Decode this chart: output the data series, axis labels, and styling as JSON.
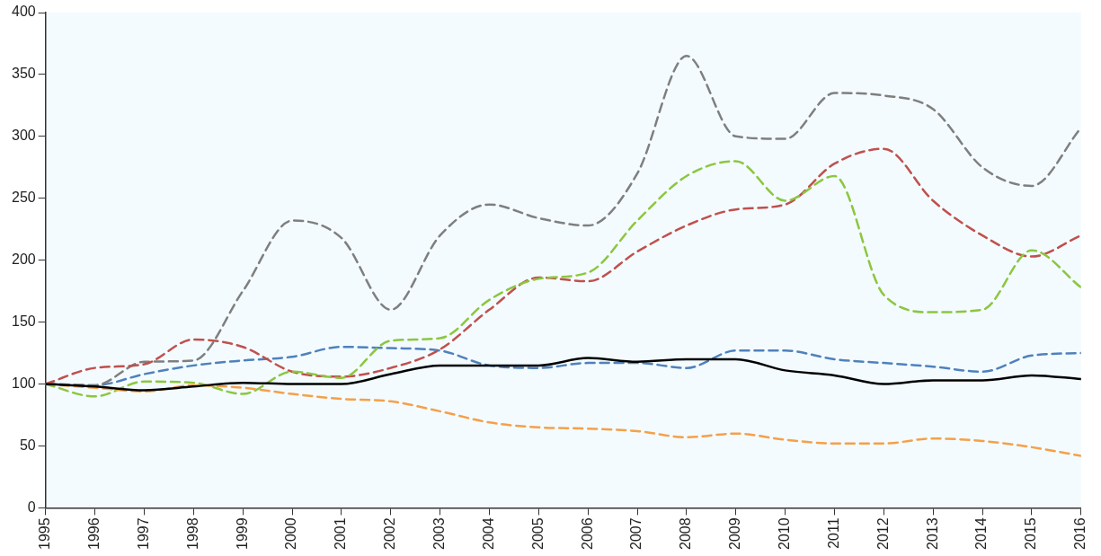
{
  "chart_data": {
    "type": "line",
    "x": [
      1995,
      1996,
      1997,
      1998,
      1999,
      2000,
      2001,
      2002,
      2003,
      2004,
      2005,
      2006,
      2007,
      2008,
      2009,
      2010,
      2011,
      2012,
      2013,
      2014,
      2015,
      2016
    ],
    "xlim": [
      1995,
      2016
    ],
    "xticks": [
      1995,
      1996,
      1997,
      1998,
      1999,
      2000,
      2001,
      2002,
      2003,
      2004,
      2005,
      2006,
      2007,
      2008,
      2009,
      2010,
      2011,
      2012,
      2013,
      2014,
      2015,
      2016
    ],
    "ylim": [
      0,
      400
    ],
    "yticks": [
      0,
      50,
      100,
      150,
      200,
      250,
      300,
      350,
      400
    ],
    "grid": false,
    "legend": false,
    "marker": "none",
    "series": [
      {
        "color": "#000000",
        "line_style": "solid",
        "values": [
          100,
          98,
          95,
          98,
          101,
          100,
          100,
          108,
          115,
          115,
          115,
          121,
          118,
          120,
          120,
          111,
          107,
          100,
          103,
          103,
          107,
          104
        ]
      },
      {
        "color": "#f5a04a",
        "line_style": "dashed",
        "values": [
          100,
          97,
          94,
          99,
          97,
          92,
          88,
          86,
          78,
          69,
          65,
          64,
          62,
          57,
          60,
          55,
          52,
          52,
          56,
          54,
          49,
          42
        ]
      },
      {
        "color": "#8cc63f",
        "line_style": "dashed",
        "values": [
          100,
          90,
          102,
          101,
          92,
          110,
          105,
          135,
          137,
          168,
          185,
          190,
          232,
          268,
          280,
          248,
          268,
          172,
          158,
          160,
          208,
          178
        ]
      },
      {
        "color": "#c0504d",
        "line_style": "dashed",
        "values": [
          100,
          113,
          116,
          136,
          130,
          110,
          106,
          113,
          128,
          160,
          186,
          183,
          207,
          228,
          241,
          245,
          278,
          290,
          248,
          220,
          203,
          220
        ]
      },
      {
        "color": "#7f7f7f",
        "line_style": "dashed",
        "values": [
          100,
          99,
          118,
          119,
          175,
          232,
          218,
          160,
          220,
          245,
          234,
          228,
          270,
          365,
          300,
          298,
          335,
          333,
          322,
          275,
          260,
          307
        ]
      },
      {
        "color": "#4f81bd",
        "line_style": "dashed",
        "values": [
          100,
          99,
          108,
          115,
          119,
          122,
          130,
          129,
          127,
          115,
          113,
          117,
          117,
          113,
          127,
          127,
          120,
          117,
          114,
          110,
          123,
          125
        ]
      }
    ]
  }
}
